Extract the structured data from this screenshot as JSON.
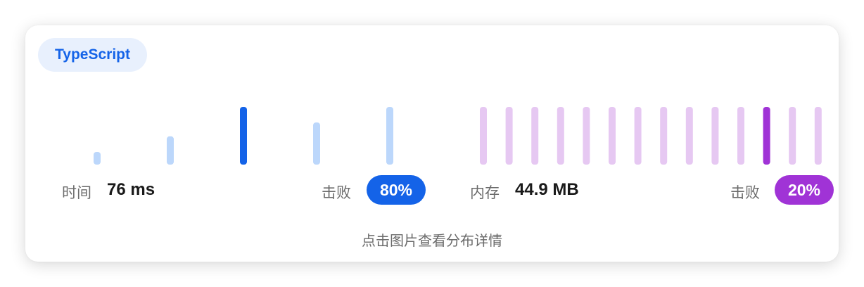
{
  "language": "TypeScript",
  "time": {
    "label": "时间",
    "value": "76 ms",
    "beat_label": "击败",
    "beat_percent": "80%"
  },
  "memory": {
    "label": "内存",
    "value": "44.9 MB",
    "beat_label": "击败",
    "beat_percent": "20%"
  },
  "hint": "点击图片查看分布详情",
  "colors": {
    "time_bar": "#bcd7fb",
    "time_highlight": "#1463e8",
    "time_pill": "#1463e8",
    "memory_bar": "#e6c8f2",
    "memory_highlight": "#a033d6",
    "memory_pill": "#a033d6",
    "badge_bg": "#e8f0fd",
    "badge_text": "#1463e8"
  },
  "chart_data": [
    {
      "type": "bar",
      "series_key": "time",
      "values": [
        0.22,
        0.49,
        1.0,
        0.73,
        1.0
      ],
      "highlight_index": 2
    },
    {
      "type": "bar",
      "series_key": "memory",
      "values": [
        1,
        1,
        1,
        1,
        1,
        1,
        1,
        1,
        1,
        1,
        1,
        1,
        1,
        1
      ],
      "highlight_index": 11
    }
  ]
}
